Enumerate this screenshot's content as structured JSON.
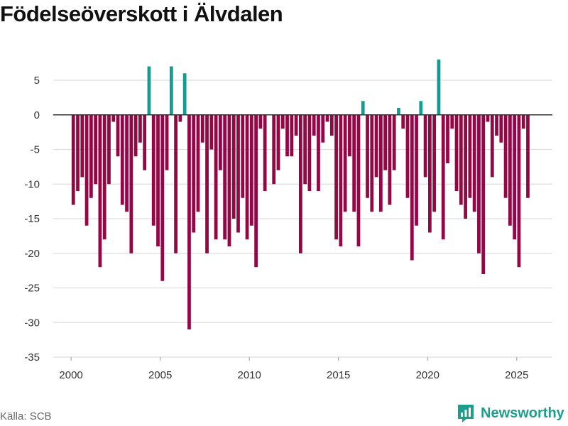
{
  "title": "Födelseöverskott i Älvdalen",
  "source": "Källa: SCB",
  "brand": {
    "name": "Newsworthy",
    "icon": "newsworthy-logo-icon"
  },
  "colors": {
    "negative": "#950645",
    "positive": "#149c94",
    "grid": "#dddddd",
    "zero": "#333333",
    "brand": "#1b9e8c"
  },
  "chart_data": {
    "type": "bar",
    "title": "Födelseöverskott i Älvdalen",
    "xlabel": "",
    "ylabel": "",
    "xlim": [
      1999.0,
      2027.0
    ],
    "ylim": [
      -35,
      9
    ],
    "x_ticks": [
      2000,
      2005,
      2010,
      2015,
      2020,
      2025
    ],
    "y_ticks": [
      -35,
      -30,
      -25,
      -20,
      -15,
      -10,
      -5,
      0,
      5
    ],
    "bar_width_years": 0.19,
    "series": [
      {
        "name": "Födelseöverskott",
        "x": [
          2000.125,
          2000.375,
          2000.625,
          2000.875,
          2001.125,
          2001.375,
          2001.625,
          2001.875,
          2002.125,
          2002.375,
          2002.625,
          2002.875,
          2003.125,
          2003.375,
          2003.625,
          2003.875,
          2004.125,
          2004.375,
          2004.625,
          2004.875,
          2005.125,
          2005.375,
          2005.625,
          2005.875,
          2006.125,
          2006.375,
          2006.625,
          2006.875,
          2007.125,
          2007.375,
          2007.625,
          2007.875,
          2008.125,
          2008.375,
          2008.625,
          2008.875,
          2009.125,
          2009.375,
          2009.625,
          2009.875,
          2010.125,
          2010.375,
          2010.625,
          2010.875,
          2011.125,
          2011.375,
          2011.625,
          2011.875,
          2012.125,
          2012.375,
          2012.625,
          2012.875,
          2013.125,
          2013.375,
          2013.625,
          2013.875,
          2014.125,
          2014.375,
          2014.625,
          2014.875,
          2015.125,
          2015.375,
          2015.625,
          2015.875,
          2016.125,
          2016.375,
          2016.625,
          2016.875,
          2017.125,
          2017.375,
          2017.625,
          2017.875,
          2018.125,
          2018.375,
          2018.625,
          2018.875,
          2019.125,
          2019.375,
          2019.625,
          2019.875,
          2020.125,
          2020.375,
          2020.625,
          2020.875,
          2021.125,
          2021.375,
          2021.625,
          2021.875,
          2022.125,
          2022.375,
          2022.625,
          2022.875,
          2023.125,
          2023.375,
          2023.625,
          2023.875,
          2024.125,
          2024.375,
          2024.625,
          2024.875,
          2025.125,
          2025.375,
          2025.625
        ],
        "values": [
          -13,
          -11,
          -9,
          -16,
          -12,
          -10,
          -22,
          -18,
          -10,
          -1,
          -6,
          -13,
          -14,
          -20,
          -6,
          -4,
          -8,
          7,
          -16,
          -19,
          -24,
          -8,
          7,
          -20,
          -1,
          6,
          -31,
          -17,
          -14,
          -4,
          -20,
          -5,
          -18,
          -8,
          -18,
          -19,
          -15,
          -17,
          -12,
          -18,
          -16,
          -22,
          -2,
          -11,
          0,
          -10,
          -8,
          -2,
          -6,
          -6,
          -3,
          -20,
          -10,
          -11,
          -3,
          -11,
          -4,
          -1,
          -3,
          -18,
          -19,
          -14,
          -6,
          -14,
          -19,
          2,
          -12,
          -14,
          -9,
          -14,
          -8,
          -13,
          -8,
          1,
          -2,
          -12,
          -21,
          -16,
          2,
          -9,
          -17,
          -14,
          8,
          -18,
          -7,
          -2,
          -11,
          -13,
          -15,
          -12,
          -14,
          -20,
          -23,
          -1,
          -9,
          -3,
          -4,
          -12,
          -16,
          -18,
          -22,
          -2,
          -12
        ]
      }
    ]
  }
}
